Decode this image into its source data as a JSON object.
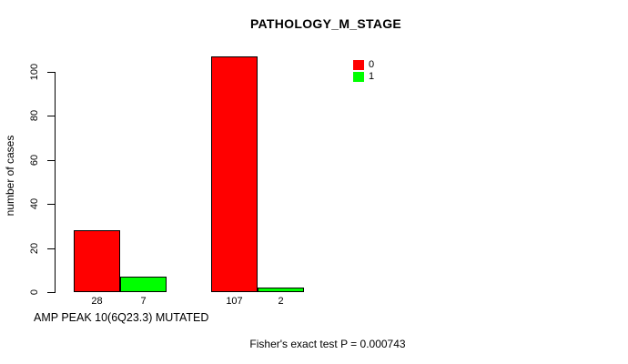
{
  "chart_data": {
    "type": "bar",
    "title": "PATHOLOGY_M_STAGE",
    "ylabel": "number of cases",
    "xlabel": "AMP PEAK 10(6Q23.3) MUTATED",
    "annotation": "Fisher's exact test P = 0.000743",
    "yticks": [
      0,
      20,
      40,
      60,
      80,
      100
    ],
    "ylim": [
      0,
      107
    ],
    "grid": false,
    "legend_position": "top-right",
    "categories": [
      "",
      ""
    ],
    "series": [
      {
        "name": "0",
        "color": "#ff0000",
        "values": [
          28,
          107
        ]
      },
      {
        "name": "1",
        "color": "#00ff00",
        "values": [
          7,
          2
        ]
      }
    ],
    "bar_value_labels": [
      [
        28,
        7
      ],
      [
        107,
        2
      ]
    ]
  }
}
